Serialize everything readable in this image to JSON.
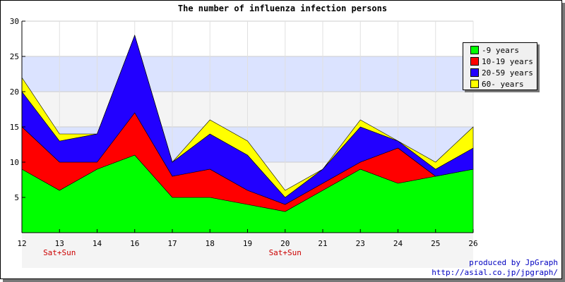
{
  "chart_data": {
    "type": "area",
    "stacked": true,
    "title": "The number of influenza infection persons",
    "x": [
      "12",
      "13",
      "14",
      "16",
      "17",
      "18",
      "19",
      "20",
      "21",
      "23",
      "24",
      "25",
      "26"
    ],
    "x_sublabels": [
      "",
      "Sat+Sun",
      "",
      "",
      "",
      "",
      "",
      "Sat+Sun",
      "",
      "",
      "",
      "",
      ""
    ],
    "ylim": [
      0,
      30
    ],
    "yticks": [
      5,
      10,
      15,
      20,
      25,
      30
    ],
    "grid": true,
    "legend_position": "right",
    "series": [
      {
        "name": "-9 years",
        "color": "#00ff00",
        "values": [
          9,
          6,
          9,
          11,
          5,
          5,
          4,
          3,
          6,
          9,
          7,
          8,
          9
        ]
      },
      {
        "name": "10-19 years",
        "color": "#ff0000",
        "values": [
          6,
          4,
          1,
          6,
          3,
          4,
          2,
          1,
          1,
          1,
          5,
          0,
          0
        ]
      },
      {
        "name": "20-59 years",
        "color": "#2200ff",
        "values": [
          5,
          3,
          4,
          11,
          2,
          5,
          5,
          1,
          2,
          5,
          1,
          1,
          3
        ]
      },
      {
        "name": "60- years",
        "color": "#ffff00",
        "values": [
          2,
          1,
          0,
          0,
          0,
          2,
          2,
          1,
          0,
          1,
          0,
          1,
          3
        ]
      }
    ]
  },
  "footer": {
    "line1": "produced by JpGraph",
    "line2": "http://asial.co.jp/jpgraph/"
  }
}
